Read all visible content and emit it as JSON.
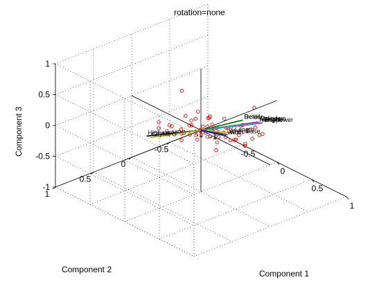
{
  "chart_data": {
    "type": "scatter",
    "title": "rotation=none",
    "xlabel": "Component 1",
    "ylabel": "Component 2",
    "zlabel": "Component 3",
    "xlim": [
      -1,
      1
    ],
    "ylim": [
      -1,
      1
    ],
    "zlim": [
      -1,
      1
    ],
    "xticks": [
      "-1",
      "-0.5",
      "0",
      "0.5",
      "1"
    ],
    "yticks": [
      "-1",
      "-0.5",
      "0",
      "0.5",
      "1"
    ],
    "zticks": [
      "-1",
      "-0.5",
      "0",
      "0.5",
      "1"
    ],
    "grid": true,
    "vectors": [
      {
        "label": "Retail",
        "x": 0.55,
        "y": -0.05,
        "z": 0.45,
        "color": "#008000"
      },
      {
        "label": "Dealer",
        "x": 0.55,
        "y": -0.05,
        "z": 0.45,
        "color": "#008000"
      },
      {
        "label": "Horsepower",
        "x": 0.55,
        "y": -0.25,
        "z": 0.3,
        "color": "#0000ff"
      },
      {
        "label": "Cylinders",
        "x": 0.45,
        "y": -0.35,
        "z": 0.22,
        "color": "#bf00bf"
      },
      {
        "label": "Engine",
        "x": 0.45,
        "y": -0.4,
        "z": 0.18,
        "color": "#ff0000"
      },
      {
        "label": "Weight",
        "x": 0.3,
        "y": -0.5,
        "z": 0.05,
        "color": "#00bfbf"
      },
      {
        "label": "Length",
        "x": 0.25,
        "y": -0.2,
        "z": 0.0,
        "color": "#bfbf00"
      },
      {
        "label": "Wheelbase",
        "x": 0.22,
        "y": -0.15,
        "z": -0.02,
        "color": "#404040"
      },
      {
        "label": "Width",
        "x": 0.25,
        "y": -0.1,
        "z": 0.0,
        "color": "#0000ff"
      },
      {
        "label": "HighwayMPG",
        "x": -0.4,
        "y": 0.35,
        "z": -0.15,
        "color": "#000000"
      },
      {
        "label": "CityMPG",
        "x": -0.4,
        "y": 0.3,
        "z": -0.2,
        "color": "#bfbf00"
      }
    ],
    "points": [
      {
        "x": -0.23,
        "y": 0.04,
        "z": 0.53
      },
      {
        "x": 0.55,
        "y": -0.2,
        "z": 0.58
      },
      {
        "x": -0.1,
        "y": 0.35,
        "z": 0.05
      },
      {
        "x": 0.05,
        "y": 0.02,
        "z": 0.1
      },
      {
        "x": 0.1,
        "y": -0.1,
        "z": 0.05
      },
      {
        "x": 0.15,
        "y": 0.05,
        "z": 0.0
      },
      {
        "x": 0.0,
        "y": 0.0,
        "z": 0.0
      },
      {
        "x": -0.05,
        "y": 0.1,
        "z": -0.05
      },
      {
        "x": 0.08,
        "y": -0.05,
        "z": -0.08
      },
      {
        "x": 0.12,
        "y": -0.12,
        "z": -0.1
      },
      {
        "x": -0.08,
        "y": 0.05,
        "z": 0.06
      },
      {
        "x": 0.02,
        "y": 0.08,
        "z": -0.03
      },
      {
        "x": 0.2,
        "y": -0.15,
        "z": 0.08
      },
      {
        "x": 0.25,
        "y": -0.2,
        "z": 0.02
      },
      {
        "x": 0.18,
        "y": -0.05,
        "z": -0.12
      },
      {
        "x": -0.12,
        "y": 0.15,
        "z": 0.02
      },
      {
        "x": -0.15,
        "y": 0.12,
        "z": -0.08
      },
      {
        "x": 0.05,
        "y": -0.15,
        "z": -0.15
      },
      {
        "x": 0.1,
        "y": 0.1,
        "z": 0.1
      },
      {
        "x": 0.3,
        "y": -0.25,
        "z": 0.12
      },
      {
        "x": 0.35,
        "y": -0.3,
        "z": 0.05
      },
      {
        "x": 0.22,
        "y": -0.3,
        "z": -0.1
      },
      {
        "x": 0.15,
        "y": -0.25,
        "z": -0.2
      },
      {
        "x": 0.05,
        "y": -0.05,
        "z": 0.2
      },
      {
        "x": 0.0,
        "y": 0.15,
        "z": 0.15
      },
      {
        "x": -0.05,
        "y": -0.05,
        "z": -0.12
      },
      {
        "x": 0.08,
        "y": 0.12,
        "z": -0.05
      },
      {
        "x": -0.2,
        "y": 0.2,
        "z": 0.05
      },
      {
        "x": -0.25,
        "y": 0.22,
        "z": -0.05
      },
      {
        "x": -0.18,
        "y": 0.25,
        "z": 0.1
      },
      {
        "x": 0.28,
        "y": -0.1,
        "z": 0.15
      },
      {
        "x": 0.32,
        "y": -0.15,
        "z": -0.05
      },
      {
        "x": 0.4,
        "y": -0.35,
        "z": 0.1
      },
      {
        "x": 0.45,
        "y": -0.4,
        "z": 0.0
      },
      {
        "x": 0.12,
        "y": -0.35,
        "z": -0.25
      },
      {
        "x": 0.2,
        "y": -0.4,
        "z": -0.3
      },
      {
        "x": 0.25,
        "y": -0.35,
        "z": -0.28
      },
      {
        "x": 0.05,
        "y": -0.28,
        "z": -0.22
      },
      {
        "x": -0.02,
        "y": 0.02,
        "z": 0.3
      },
      {
        "x": 0.1,
        "y": -0.02,
        "z": 0.25
      },
      {
        "x": 0.18,
        "y": 0.08,
        "z": 0.2
      },
      {
        "x": 0.02,
        "y": 0.22,
        "z": 0.35
      },
      {
        "x": 0.06,
        "y": 0.18,
        "z": 0.28
      },
      {
        "x": -0.1,
        "y": -0.02,
        "z": 0.12
      },
      {
        "x": 0.14,
        "y": -0.18,
        "z": 0.18
      },
      {
        "x": 0.38,
        "y": -0.2,
        "z": 0.2
      },
      {
        "x": -0.3,
        "y": 0.28,
        "z": 0.0
      },
      {
        "x": -0.28,
        "y": 0.3,
        "z": 0.12
      },
      {
        "x": 0.22,
        "y": 0.0,
        "z": -0.2
      },
      {
        "x": 0.28,
        "y": -0.42,
        "z": -0.18
      },
      {
        "x": 0.35,
        "y": -0.45,
        "z": -0.1
      },
      {
        "x": 0.15,
        "y": 0.02,
        "z": 0.32
      },
      {
        "x": 0.08,
        "y": -0.08,
        "z": 0.0
      },
      {
        "x": 0.03,
        "y": -0.12,
        "z": 0.05
      },
      {
        "x": -0.03,
        "y": 0.04,
        "z": -0.02
      },
      {
        "x": 0.11,
        "y": 0.04,
        "z": 0.04
      },
      {
        "x": 0.16,
        "y": -0.08,
        "z": 0.02
      },
      {
        "x": 0.06,
        "y": 0.06,
        "z": 0.07
      },
      {
        "x": 0.01,
        "y": -0.2,
        "z": -0.05
      },
      {
        "x": 0.19,
        "y": -0.22,
        "z": 0.05
      },
      {
        "x": 0.24,
        "y": -0.08,
        "z": 0.06
      },
      {
        "x": -0.06,
        "y": 0.2,
        "z": -0.1
      }
    ]
  }
}
